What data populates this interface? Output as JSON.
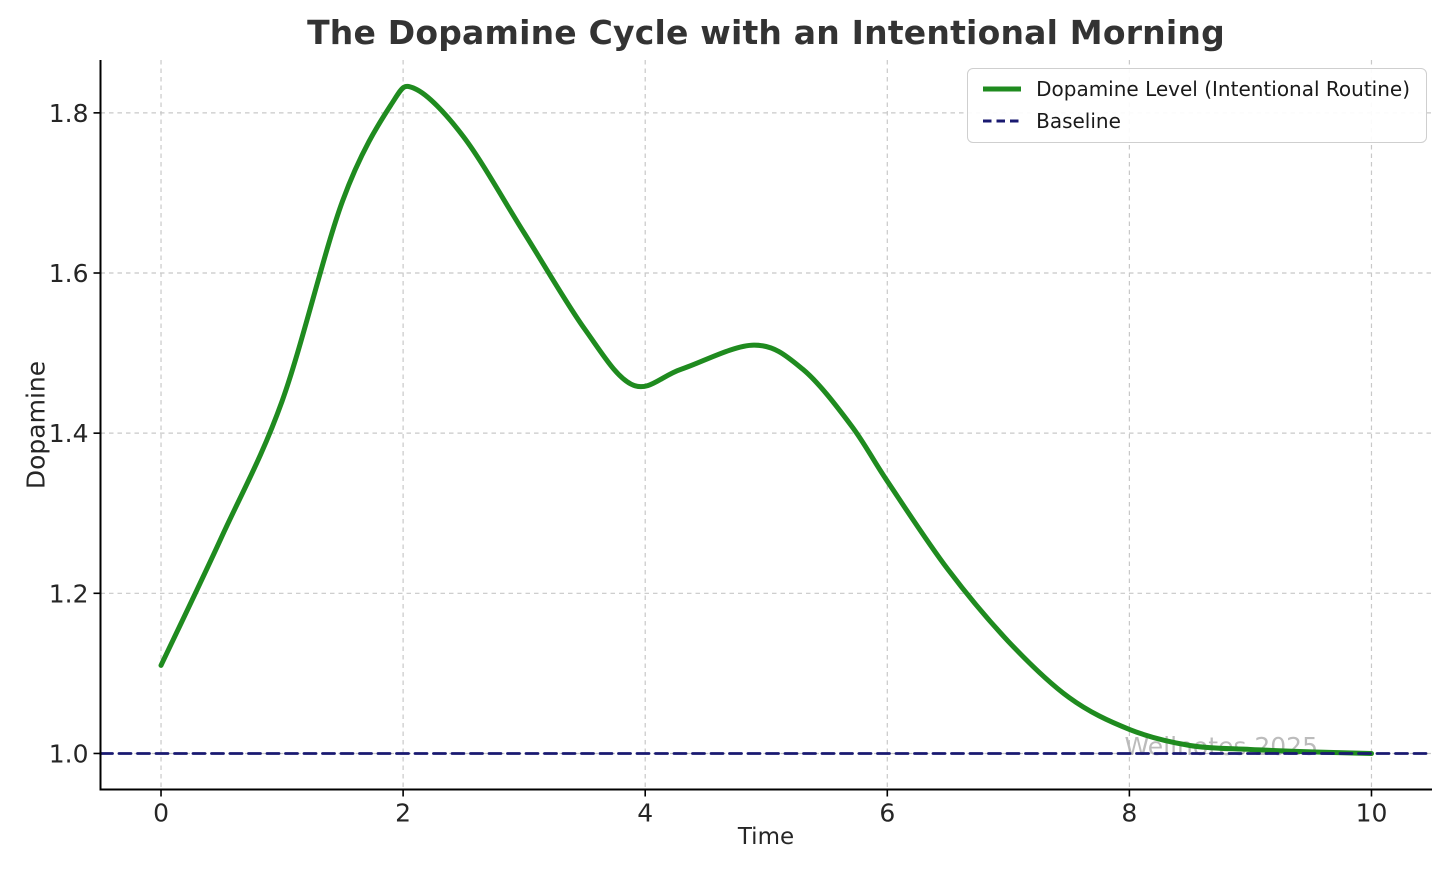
{
  "figure": {
    "title": "The Dopamine Cycle with an Intentional Morning",
    "background": "#ffffff",
    "title_color": "#333333",
    "text_color": "#262626",
    "spine_color": "#000000",
    "grid_color": "#c8c8c8"
  },
  "chart_data": {
    "type": "line",
    "title": "The Dopamine Cycle with an Intentional Morning",
    "xlabel": "Time",
    "ylabel": "Dopamine",
    "xlim": [
      -0.5,
      10.5
    ],
    "ylim": [
      0.955,
      1.866
    ],
    "xticks": [
      0,
      2,
      4,
      6,
      8,
      10
    ],
    "xtick_labels": [
      "0",
      "2",
      "4",
      "6",
      "8",
      "10"
    ],
    "yticks": [
      1.0,
      1.2,
      1.4,
      1.6,
      1.8
    ],
    "ytick_labels": [
      "1.0",
      "1.2",
      "1.4",
      "1.6",
      "1.8"
    ],
    "grid": true,
    "grid_style": "dashed",
    "legend_position": "upper right",
    "series": [
      {
        "name": "Dopamine Level (Intentional Routine)",
        "color": "#1f8b1f",
        "line_style": "solid",
        "line_width": 5,
        "x": [
          0,
          0.5,
          1,
          1.5,
          1.9,
          2.1,
          2.5,
          3,
          3.5,
          3.9,
          4.3,
          4.9,
          5.3,
          5.7,
          6,
          6.5,
          7,
          7.5,
          8,
          8.5,
          9,
          9.5,
          10
        ],
        "y": [
          1.11,
          1.27,
          1.44,
          1.69,
          1.81,
          1.83,
          1.77,
          1.65,
          1.53,
          1.46,
          1.48,
          1.51,
          1.48,
          1.41,
          1.34,
          1.23,
          1.14,
          1.07,
          1.03,
          1.01,
          1.005,
          1.002,
          1.0
        ]
      },
      {
        "name": "Baseline",
        "color": "#191970",
        "line_style": "dashed",
        "line_width": 2.8,
        "x": [
          -0.5,
          10.5
        ],
        "y": [
          1.0,
          1.0
        ]
      }
    ],
    "annotations": [
      {
        "text": "Wellnotes 2025",
        "x": 7.96,
        "y": 0.998,
        "color": "#b5b5b5",
        "font_size": 25
      }
    ],
    "notable_points": {
      "start": {
        "x": 0,
        "y": 1.11
      },
      "main_peak": {
        "x": 2.05,
        "y": 1.83
      },
      "local_min": {
        "x": 3.9,
        "y": 1.46
      },
      "second_peak": {
        "x": 4.9,
        "y": 1.51
      },
      "settles_to_baseline": {
        "x": 10,
        "y": 1.0
      }
    }
  }
}
